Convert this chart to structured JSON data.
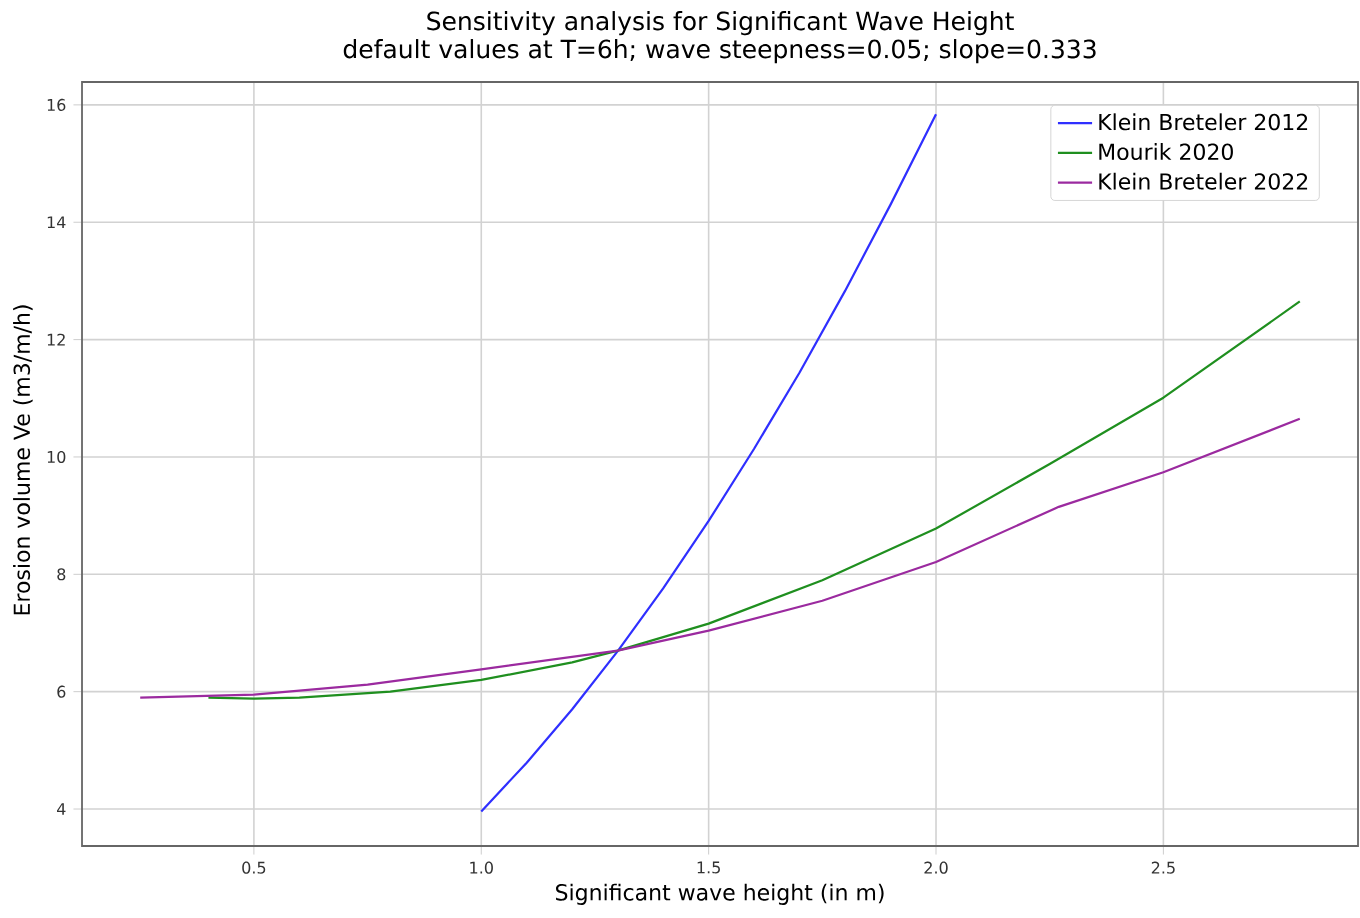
{
  "chart_data": {
    "type": "line",
    "title": "Sensitivity analysis for Significant Wave Height",
    "subtitle": "default values at T=6h; wave steepness=0.05; slope=0.333",
    "xlabel": "Significant wave height (in m)",
    "ylabel": "Erosion volume Ve (m3/m/h)",
    "xlim": [
      0.122,
      2.928
    ],
    "ylim": [
      3.37,
      16.39
    ],
    "xticks": [
      {
        "value": 0.5,
        "label": "0.5"
      },
      {
        "value": 1.0,
        "label": "1.0"
      },
      {
        "value": 1.5,
        "label": "1.5"
      },
      {
        "value": 2.0,
        "label": "2.0"
      },
      {
        "value": 2.5,
        "label": "2.5"
      }
    ],
    "yticks": [
      4,
      6,
      8,
      10,
      12,
      14,
      16
    ],
    "grid": true,
    "legend": "top right",
    "marker": "none",
    "line_style": "solid",
    "series": [
      {
        "name": "Klein Breteler 2012",
        "color": "#2f2fff",
        "x": [
          1.0,
          1.1,
          1.2,
          1.3,
          1.4,
          1.5,
          1.6,
          1.7,
          1.8,
          1.9,
          2.0
        ],
        "values": [
          3.96,
          4.79,
          5.7,
          6.69,
          7.76,
          8.91,
          10.14,
          11.44,
          12.83,
          14.3,
          15.84
        ]
      },
      {
        "name": "Mourik 2020",
        "color": "#1f8f1f",
        "x": [
          0.4,
          0.5,
          0.6,
          0.8,
          1.0,
          1.2,
          1.3,
          1.5,
          1.75,
          2.0,
          2.25,
          2.5,
          2.8
        ],
        "values": [
          5.9,
          5.88,
          5.9,
          6.0,
          6.2,
          6.5,
          6.7,
          7.16,
          7.9,
          8.78,
          9.88,
          11.01,
          12.65
        ]
      },
      {
        "name": "Klein Breteler 2022",
        "color": "#9b2a9f",
        "x": [
          0.25,
          0.5,
          0.75,
          1.0,
          1.3,
          1.5,
          1.75,
          2.0,
          2.27,
          2.5,
          2.8
        ],
        "values": [
          5.9,
          5.95,
          6.12,
          6.38,
          6.7,
          7.04,
          7.55,
          8.21,
          9.15,
          9.74,
          10.65
        ]
      }
    ]
  }
}
